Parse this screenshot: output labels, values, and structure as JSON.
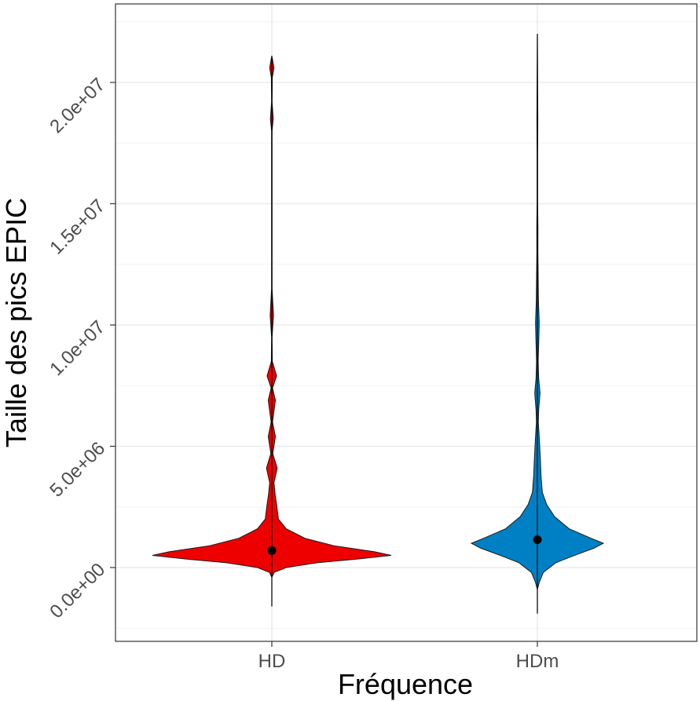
{
  "chart_data": {
    "type": "violin",
    "title": "",
    "xlabel": "Fréquence",
    "ylabel": "Taille des pics EPIC",
    "categories": [
      "HD",
      "HDm"
    ],
    "ylim": [
      -3000000,
      23500000
    ],
    "y_ticks": [
      {
        "value": 0,
        "label": "0.0e+00"
      },
      {
        "value": 5000000,
        "label": "5.0e+06"
      },
      {
        "value": 10000000,
        "label": "1.0e+07"
      },
      {
        "value": 15000000,
        "label": "1.5e+07"
      },
      {
        "value": 20000000,
        "label": "2.0e+07"
      }
    ],
    "y_tick_label_rotation_deg": -45,
    "grid": true,
    "legend": "none",
    "series": [
      {
        "category": "HD",
        "color": "#EE0000",
        "median": 700000,
        "whisker_low": -1600000,
        "whisker_high": 21000000,
        "density_profile": [
          {
            "y": -400000,
            "w": 0.0
          },
          {
            "y": -200000,
            "w": 0.02
          },
          {
            "y": 0,
            "w": 0.12
          },
          {
            "y": 200000,
            "w": 0.38
          },
          {
            "y": 350000,
            "w": 0.72
          },
          {
            "y": 500000,
            "w": 1.0
          },
          {
            "y": 650000,
            "w": 0.86
          },
          {
            "y": 900000,
            "w": 0.52
          },
          {
            "y": 1200000,
            "w": 0.28
          },
          {
            "y": 1600000,
            "w": 0.12
          },
          {
            "y": 2000000,
            "w": 0.055
          },
          {
            "y": 2600000,
            "w": 0.04
          },
          {
            "y": 3000000,
            "w": 0.028
          },
          {
            "y": 3500000,
            "w": 0.018
          },
          {
            "y": 4100000,
            "w": 0.045
          },
          {
            "y": 4700000,
            "w": 0.008
          },
          {
            "y": 5400000,
            "w": 0.03
          },
          {
            "y": 6000000,
            "w": 0.006
          },
          {
            "y": 6900000,
            "w": 0.03
          },
          {
            "y": 7400000,
            "w": 0.006
          },
          {
            "y": 7900000,
            "w": 0.04
          },
          {
            "y": 8500000,
            "w": 0.004
          },
          {
            "y": 9500000,
            "w": 0.002
          },
          {
            "y": 10400000,
            "w": 0.014
          },
          {
            "y": 11500000,
            "w": 0.002
          },
          {
            "y": 18000000,
            "w": 0.002
          },
          {
            "y": 18500000,
            "w": 0.012
          },
          {
            "y": 19200000,
            "w": 0.002
          },
          {
            "y": 20200000,
            "w": 0.004
          },
          {
            "y": 20600000,
            "w": 0.018
          },
          {
            "y": 21000000,
            "w": 0.004
          },
          {
            "y": 21100000,
            "w": 0.0
          }
        ]
      },
      {
        "category": "HDm",
        "color": "#0080C4",
        "median": 1150000,
        "whisker_low": -1900000,
        "whisker_high": 22000000,
        "density_profile": [
          {
            "y": -900000,
            "w": 0.0
          },
          {
            "y": -600000,
            "w": 0.03
          },
          {
            "y": -200000,
            "w": 0.09
          },
          {
            "y": 200000,
            "w": 0.28
          },
          {
            "y": 500000,
            "w": 0.56
          },
          {
            "y": 800000,
            "w": 0.86
          },
          {
            "y": 1000000,
            "w": 1.0
          },
          {
            "y": 1200000,
            "w": 0.82
          },
          {
            "y": 1600000,
            "w": 0.48
          },
          {
            "y": 2100000,
            "w": 0.26
          },
          {
            "y": 2600000,
            "w": 0.14
          },
          {
            "y": 3100000,
            "w": 0.075
          },
          {
            "y": 3800000,
            "w": 0.055
          },
          {
            "y": 4500000,
            "w": 0.045
          },
          {
            "y": 5300000,
            "w": 0.03
          },
          {
            "y": 6000000,
            "w": 0.014
          },
          {
            "y": 6500000,
            "w": 0.02
          },
          {
            "y": 7200000,
            "w": 0.04
          },
          {
            "y": 7800000,
            "w": 0.02
          },
          {
            "y": 8500000,
            "w": 0.012
          },
          {
            "y": 9400000,
            "w": 0.022
          },
          {
            "y": 10100000,
            "w": 0.028
          },
          {
            "y": 11000000,
            "w": 0.016
          },
          {
            "y": 12000000,
            "w": 0.012
          },
          {
            "y": 13000000,
            "w": 0.008
          },
          {
            "y": 14000000,
            "w": 0.009
          },
          {
            "y": 15000000,
            "w": 0.004
          },
          {
            "y": 17000000,
            "w": 0.004
          },
          {
            "y": 18500000,
            "w": 0.007
          },
          {
            "y": 20000000,
            "w": 0.004
          },
          {
            "y": 21000000,
            "w": 0.002
          },
          {
            "y": 22000000,
            "w": 0.0
          }
        ]
      }
    ]
  }
}
